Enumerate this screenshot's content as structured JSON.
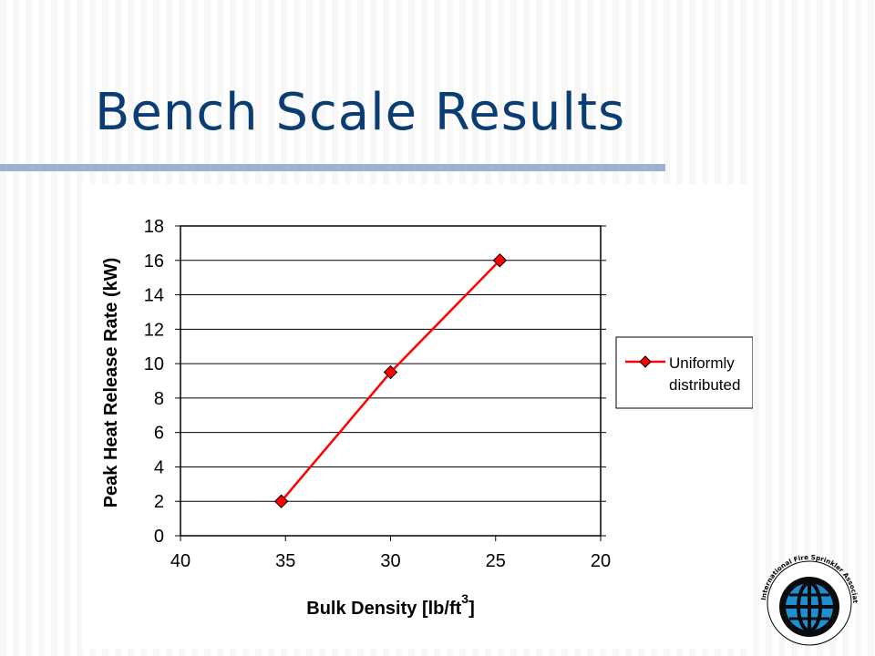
{
  "slide": {
    "title": "Bench Scale Results"
  },
  "colors": {
    "title": "#0a3d73",
    "rule": "#9bb3cf",
    "series": "#ff0000",
    "logo_globe": "#1e8fd0"
  },
  "chart_data": {
    "type": "line",
    "xlabel": "Bulk Density [lb/ft",
    "xlabel_superscript": "3",
    "xlabel_close": "]",
    "ylabel": "Peak Heat Release Rate (kW)",
    "xlim": [
      40,
      20
    ],
    "x_reversed": true,
    "ylim": [
      0,
      18
    ],
    "xticks": [
      40,
      35,
      30,
      25,
      20
    ],
    "yticks": [
      0,
      2,
      4,
      6,
      8,
      10,
      12,
      14,
      16,
      18
    ],
    "grid": "horizontal",
    "legend_position": "right",
    "series": [
      {
        "name": "Uniformly distributed",
        "legend_lines": [
          "Uniformly",
          "distributed"
        ],
        "marker": "diamond",
        "x": [
          35.2,
          30.0,
          24.8
        ],
        "y": [
          2.0,
          9.5,
          16.0
        ]
      }
    ]
  },
  "logo": {
    "icon": "globe-icon",
    "text": "International Fire Sprinkler Association, Ltd."
  }
}
